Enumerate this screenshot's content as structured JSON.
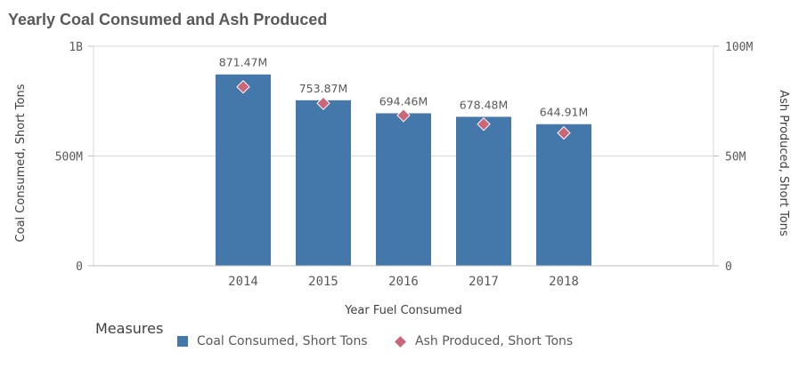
{
  "chart_data": {
    "type": "bar",
    "title": "Yearly Coal Consumed and Ash Produced",
    "xlabel": "Year Fuel Consumed",
    "ylabel": "Coal Consumed, Short Tons",
    "y2label": "Ash Produced, Short Tons",
    "categories": [
      "2014",
      "2015",
      "2016",
      "2017",
      "2018"
    ],
    "ylim": [
      0,
      1000000000
    ],
    "y2lim": [
      0,
      100000000
    ],
    "yticks": [
      "0",
      "500M",
      "1B"
    ],
    "y2ticks": [
      "0",
      "50M",
      "100M"
    ],
    "grid": true,
    "legend_title": "Measures",
    "legend_position": "bottom-left",
    "series": [
      {
        "name": "Coal Consumed, Short Tons",
        "type": "bar",
        "axis": "left",
        "color": "#4477aa",
        "values": [
          871470000,
          753870000,
          694460000,
          678480000,
          644910000
        ],
        "labels": [
          "871.47M",
          "753.87M",
          "694.46M",
          "678.48M",
          "644.91M"
        ]
      },
      {
        "name": "Ash Produced, Short Tons",
        "type": "scatter",
        "axis": "right",
        "color": "#cc6677",
        "values": [
          81500000,
          74000000,
          68500000,
          64500000,
          60500000
        ]
      }
    ]
  }
}
